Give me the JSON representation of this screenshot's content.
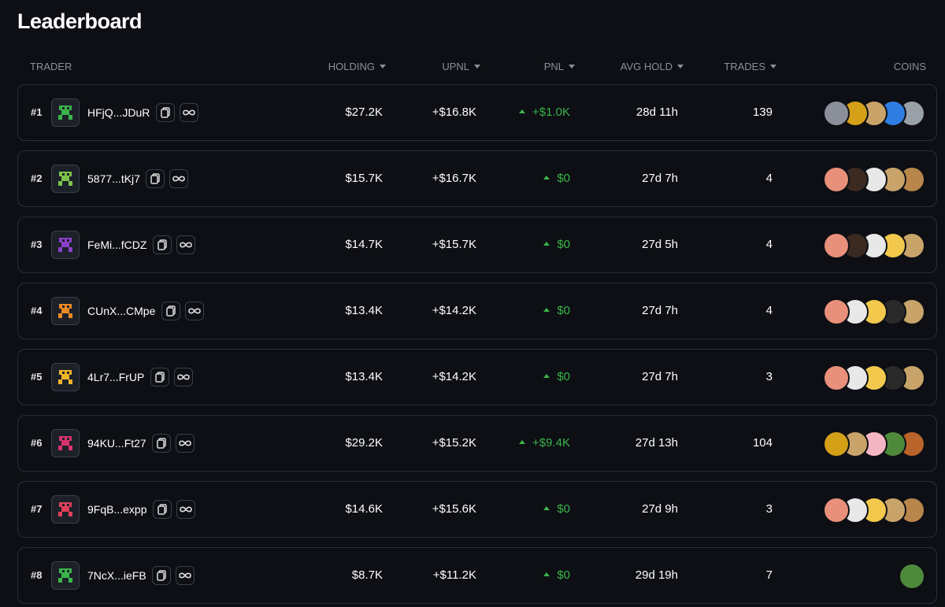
{
  "header": {
    "title": "Leaderboard"
  },
  "table": {
    "columns": [
      "TRADER",
      "HOLDING",
      "UPNL",
      "PNL",
      "AVG HOLD",
      "TRADES",
      "COINS"
    ],
    "rows": [
      {
        "rank": "#1",
        "address": "HFjQ...JDuR",
        "holding": "$27.2K",
        "upnl": "+$16.8K",
        "pnl": "+$1.0K",
        "avg_hold": "28d 11h",
        "trades": 139
      },
      {
        "rank": "#2",
        "address": "5877...tKj7",
        "holding": "$15.7K",
        "upnl": "+$16.7K",
        "pnl": "$0",
        "avg_hold": "27d 7h",
        "trades": 4
      },
      {
        "rank": "#3",
        "address": "FeMi...fCDZ",
        "holding": "$14.7K",
        "upnl": "+$15.7K",
        "pnl": "$0",
        "avg_hold": "27d 5h",
        "trades": 4
      },
      {
        "rank": "#4",
        "address": "CUnX...CMpe",
        "holding": "$13.4K",
        "upnl": "+$14.2K",
        "pnl": "$0",
        "avg_hold": "27d 7h",
        "trades": 4
      },
      {
        "rank": "#5",
        "address": "4Lr7...FrUP",
        "holding": "$13.4K",
        "upnl": "+$14.2K",
        "pnl": "$0",
        "avg_hold": "27d 7h",
        "trades": 3
      },
      {
        "rank": "#6",
        "address": "94KU...Ft27",
        "holding": "$29.2K",
        "upnl": "+$15.2K",
        "pnl": "+$9.4K",
        "avg_hold": "27d 13h",
        "trades": 104
      },
      {
        "rank": "#7",
        "address": "9FqB...expp",
        "holding": "$14.6K",
        "upnl": "+$15.6K",
        "pnl": "$0",
        "avg_hold": "27d 9h",
        "trades": 3
      },
      {
        "rank": "#8",
        "address": "7NcX...ieFB",
        "holding": "$8.7K",
        "upnl": "+$11.2K",
        "pnl": "$0",
        "avg_hold": "29d 19h",
        "trades": 7
      }
    ]
  }
}
